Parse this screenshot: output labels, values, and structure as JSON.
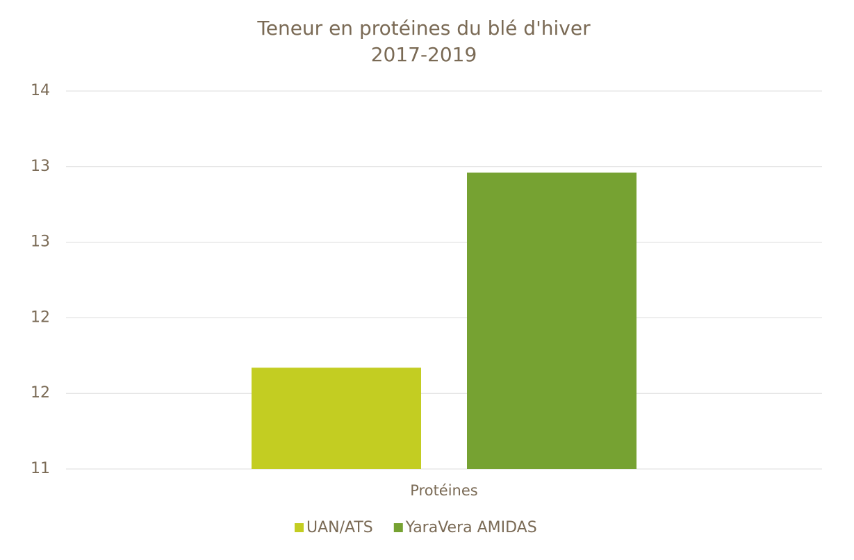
{
  "chart_data": {
    "type": "bar",
    "title": "Teneur en protéines du blé d'hiver",
    "subtitle": "2017-2019",
    "categories": [
      "Protéines"
    ],
    "series": [
      {
        "name": "UAN/ATS",
        "color": "#c3cd22",
        "values": [
          11.67
        ]
      },
      {
        "name": "YaraVera AMIDAS",
        "color": "#76a232",
        "values": [
          12.96
        ]
      }
    ],
    "ylim": [
      11,
      13.5
    ],
    "yticks": [
      11,
      {
        "value": 11.5,
        "label": "12"
      },
      12,
      {
        "value": 12.5,
        "label": "13"
      },
      13,
      {
        "value": 13.5,
        "label": "14"
      }
    ],
    "grid": true,
    "legend": "bottom"
  }
}
